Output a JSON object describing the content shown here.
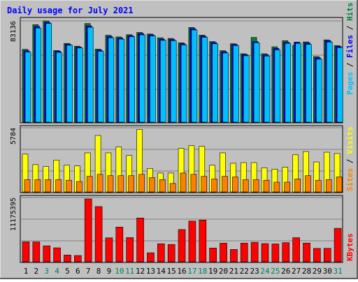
{
  "title": "Daily usage for July 2021",
  "chart_data": [
    {
      "type": "bar",
      "panel": "hits",
      "categories": [
        "1",
        "2",
        "3",
        "4",
        "5",
        "6",
        "7",
        "8",
        "9",
        "10",
        "11",
        "12",
        "13",
        "14",
        "15",
        "16",
        "17",
        "18",
        "19",
        "20",
        "21",
        "22",
        "23",
        "24",
        "25",
        "26",
        "27",
        "28",
        "29",
        "30",
        "31"
      ],
      "max_label": "83136",
      "ylim": [
        0,
        83136
      ],
      "series": [
        {
          "name": "Hits",
          "color": "#008040",
          "values": [
            59800,
            80100,
            83100,
            58800,
            64700,
            62400,
            81000,
            60000,
            71400,
            70000,
            71800,
            73700,
            72400,
            69300,
            68800,
            65200,
            77800,
            71500,
            66200,
            58700,
            64400,
            56200,
            69600,
            56200,
            61900,
            66900,
            63100,
            65900,
            53900,
            67600,
            62900
          ]
        },
        {
          "name": "Files",
          "color": "#0000FF",
          "values": [
            58600,
            78600,
            82000,
            58400,
            64000,
            61700,
            79100,
            59200,
            70300,
            69100,
            71100,
            72800,
            71700,
            68200,
            67900,
            64400,
            76800,
            70700,
            65400,
            57900,
            63900,
            55500,
            66200,
            55300,
            60500,
            65600,
            65800,
            65100,
            52900,
            66900,
            62200
          ]
        },
        {
          "name": "Pages",
          "color": "#00C0FF",
          "values": [
            57600,
            77300,
            81100,
            57300,
            63200,
            60900,
            77900,
            58300,
            69300,
            68200,
            70200,
            71700,
            70800,
            67200,
            66900,
            63400,
            75700,
            69700,
            64400,
            56800,
            62900,
            54500,
            65200,
            54300,
            59400,
            64700,
            64700,
            63900,
            51700,
            65800,
            61200
          ]
        }
      ],
      "legend": [
        "Pages",
        "Files",
        "Hits"
      ]
    },
    {
      "type": "bar",
      "panel": "visits",
      "max_label": "5784",
      "ylim": [
        0,
        5784
      ],
      "series": [
        {
          "name": "Visits",
          "color": "#FFFF00",
          "values": [
            3480,
            2520,
            2340,
            2940,
            2460,
            2400,
            3600,
            5200,
            3600,
            4140,
            3360,
            5760,
            2160,
            1740,
            1740,
            4020,
            4260,
            4200,
            2460,
            3600,
            2640,
            2700,
            2700,
            2220,
            2100,
            2280,
            3420,
            3720,
            2760,
            3660,
            3540
          ]
        },
        {
          "name": "Sites",
          "color": "#FF8000",
          "values": [
            1140,
            1140,
            1140,
            1140,
            1080,
            960,
            1440,
            1620,
            1500,
            1500,
            1500,
            1620,
            1320,
            1140,
            780,
            1740,
            1620,
            1440,
            1200,
            1440,
            1380,
            1140,
            1140,
            1080,
            900,
            900,
            1200,
            1500,
            1080,
            1140,
            1380
          ]
        }
      ],
      "legend": [
        "Sites",
        "Visits"
      ]
    },
    {
      "type": "bar",
      "panel": "kbytes",
      "max_label": "11175395",
      "ylim": [
        0,
        11175395
      ],
      "series": [
        {
          "name": "KBytes",
          "color": "#FF0000",
          "values": [
            3540000,
            3530000,
            2840000,
            2480000,
            1200000,
            1110000,
            11180000,
            9820000,
            4250000,
            6170000,
            4300000,
            7780000,
            1600000,
            3200000,
            3080000,
            5730000,
            7230000,
            7420000,
            2440000,
            3320000,
            2190000,
            3320000,
            3460000,
            3230000,
            3170000,
            3400000,
            4280000,
            3320000,
            2370000,
            2390000,
            5950000
          ]
        }
      ],
      "legend": [
        "KBytes"
      ]
    }
  ],
  "xaxis": {
    "labels": [
      "1",
      "2",
      "3",
      "4",
      "5",
      "6",
      "7",
      "8",
      "9",
      "10",
      "11",
      "12",
      "13",
      "14",
      "15",
      "16",
      "17",
      "18",
      "19",
      "20",
      "21",
      "22",
      "23",
      "24",
      "25",
      "26",
      "27",
      "28",
      "29",
      "30",
      "31"
    ],
    "weekend_color": "#00805C",
    "weekday_color": "#000000",
    "weekend_days": [
      3,
      4,
      10,
      11,
      17,
      18,
      24,
      25,
      31
    ]
  }
}
